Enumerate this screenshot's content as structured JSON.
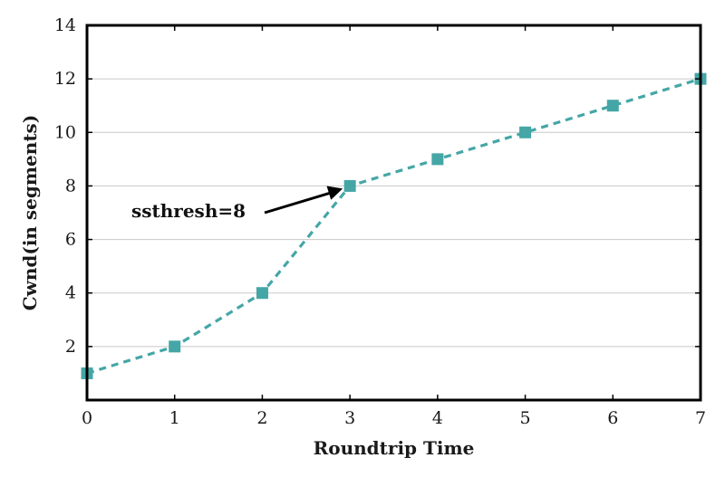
{
  "chart_data": {
    "type": "line",
    "title": "",
    "xlabel": "Roundtrip Time",
    "ylabel": "Cwnd(in segments)",
    "xlim": [
      0,
      7
    ],
    "ylim": [
      0,
      14
    ],
    "x_ticks": [
      0,
      1,
      2,
      3,
      4,
      5,
      6,
      7
    ],
    "y_ticks": [
      2,
      4,
      6,
      8,
      10,
      12,
      14
    ],
    "grid": "horizontal",
    "series": [
      {
        "x": [
          0,
          1,
          2,
          3,
          4,
          5,
          6,
          7
        ],
        "y": [
          1,
          2,
          4,
          8,
          9,
          10,
          11,
          12
        ],
        "color": "#45a6a6",
        "line_style": "dashed",
        "marker": "square"
      }
    ],
    "annotations": [
      {
        "text": "ssthresh=8",
        "x": 3,
        "y": 8
      }
    ]
  }
}
